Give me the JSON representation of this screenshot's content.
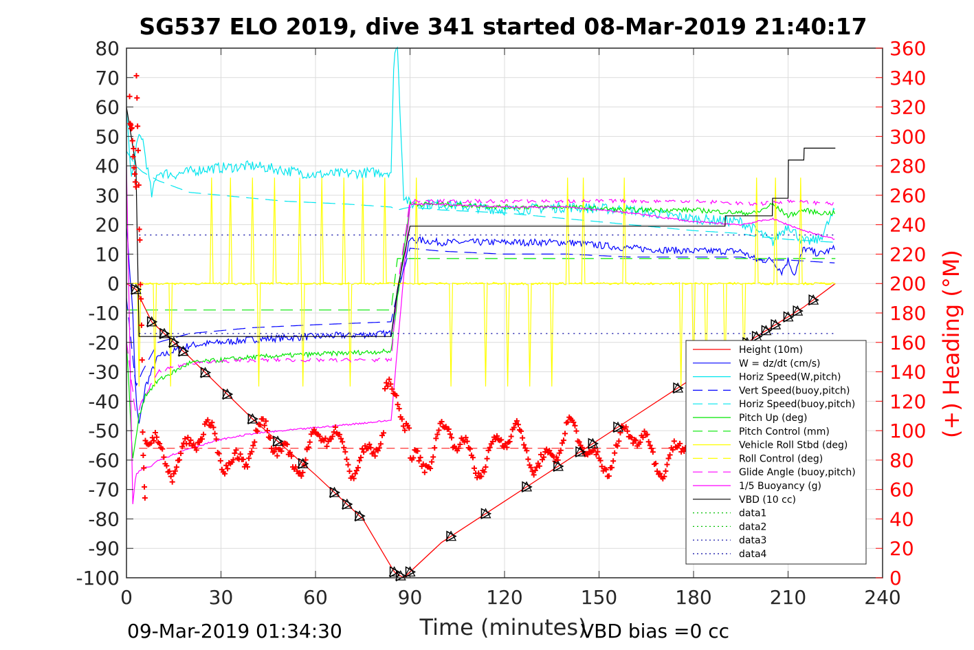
{
  "chart_data": {
    "type": "line",
    "title": "SG537 ELO 2019, dive 341 started 08-Mar-2019 21:40:17",
    "xlabel": "Time (minutes)",
    "ylabel_right": "(+) Heading (°M)",
    "xlim": [
      0,
      240
    ],
    "ylim_left": [
      -100,
      80
    ],
    "ylim_right": [
      0,
      360
    ],
    "x_ticks": [
      "0",
      "30",
      "60",
      "90",
      "120",
      "150",
      "180",
      "210",
      "240"
    ],
    "y_ticks_left": [
      "80",
      "70",
      "60",
      "50",
      "40",
      "30",
      "20",
      "10",
      "0",
      "-10",
      "-20",
      "-30",
      "-40",
      "-50",
      "-60",
      "-70",
      "-80",
      "-90",
      "-100"
    ],
    "y_ticks_right": [
      "360",
      "340",
      "320",
      "300",
      "280",
      "260",
      "240",
      "220",
      "200",
      "180",
      "160",
      "140",
      "120",
      "100",
      "80",
      "60",
      "40",
      "20",
      "0"
    ],
    "grid": true,
    "legend_position": "bottom-right",
    "footer_left": "09-Mar-2019 01:34:30",
    "footer_right": "VBD bias =0 cc",
    "heading_mean": 88,
    "series": [
      {
        "name": "Height (10m)",
        "color": "#ff0000",
        "style": "solid",
        "x": [
          0,
          3,
          8,
          20,
          40,
          60,
          75,
          85,
          88,
          100,
          120,
          140,
          160,
          180,
          200,
          215,
          225
        ],
        "y": [
          0,
          -2,
          -13,
          -25,
          -46,
          -65,
          -80,
          -98,
          -100,
          -88,
          -74,
          -60,
          -46,
          -32,
          -18,
          -8,
          0
        ]
      },
      {
        "name": "W = dz/dt (cm/s)",
        "color": "#0000ff",
        "style": "solid",
        "x": [
          0,
          2,
          3,
          4,
          6,
          10,
          20,
          40,
          60,
          84,
          86,
          90,
          100,
          120,
          140,
          160,
          180,
          195,
          200,
          205,
          208,
          210,
          212,
          215,
          220,
          225
        ],
        "y": [
          20,
          -10,
          -40,
          -48,
          -35,
          -25,
          -21,
          -19,
          -18,
          -17,
          -3,
          15,
          14,
          14,
          14,
          12,
          11,
          11,
          8,
          8,
          4,
          8,
          3,
          12,
          10,
          12
        ]
      },
      {
        "name": "Horiz Speed(W,pitch)",
        "color": "#00e5ee",
        "style": "solid",
        "x": [
          0,
          1.5,
          3,
          4,
          5,
          8,
          10,
          15,
          25,
          40,
          60,
          84,
          85,
          86,
          88,
          90,
          100,
          120,
          140,
          160,
          180,
          195,
          200,
          205,
          210,
          215,
          220,
          225
        ],
        "y": [
          60,
          35,
          45,
          50,
          50,
          30,
          38,
          37,
          39,
          40,
          37,
          38,
          80,
          80,
          30,
          27,
          27,
          25,
          26,
          25,
          22,
          21,
          18,
          14,
          20,
          14,
          15,
          25
        ]
      },
      {
        "name": "Vert Speed(buoy,pitch)",
        "color": "#0000ff",
        "style": "dashed",
        "x": [
          0,
          3,
          5,
          10,
          20,
          40,
          60,
          84,
          86,
          90,
          100,
          120,
          140,
          160,
          180,
          195,
          200,
          210,
          225
        ],
        "y": [
          -5,
          -35,
          -30,
          -20,
          -17,
          -15,
          -14,
          -13,
          -3,
          12,
          11,
          10,
          10,
          9,
          9,
          9,
          8,
          8,
          7
        ]
      },
      {
        "name": "Horiz Speed(buoy,pitch)",
        "color": "#00e5ee",
        "style": "dashed",
        "x": [
          0,
          3,
          5,
          10,
          20,
          30,
          50,
          70,
          84,
          86,
          90,
          100,
          120,
          140,
          160,
          180,
          195,
          200,
          210,
          225
        ],
        "y": [
          45,
          40,
          38,
          35,
          31,
          30,
          28,
          27,
          26,
          25,
          26,
          25,
          24,
          22,
          20,
          18,
          17,
          16,
          15,
          14
        ]
      },
      {
        "name": "Pitch Up (deg)",
        "color": "#00e600",
        "style": "solid",
        "x": [
          0,
          2,
          4,
          6,
          10,
          20,
          40,
          60,
          84,
          86,
          90,
          100,
          120,
          140,
          160,
          180,
          195,
          200,
          205,
          210,
          215,
          220,
          225
        ],
        "y": [
          -20,
          -60,
          -45,
          -38,
          -33,
          -27,
          -25,
          -24,
          -23,
          -5,
          27,
          27,
          26,
          26,
          25,
          25,
          24,
          24,
          27,
          23,
          25,
          24,
          24
        ]
      },
      {
        "name": "Pitch Control (mm)",
        "color": "#00e600",
        "style": "dashed",
        "x": [
          0,
          5,
          84,
          86,
          225
        ],
        "y": [
          -9,
          -9,
          -9,
          8.5,
          8.5
        ]
      },
      {
        "name": "Vehicle Roll Stbd (deg)",
        "color": "#ffff00",
        "style": "solid",
        "x": [
          0,
          10,
          20,
          40,
          60,
          80,
          100,
          120,
          140,
          160,
          180,
          200,
          225
        ],
        "y": [
          0,
          0,
          0,
          0,
          0,
          0,
          0,
          0,
          0,
          0,
          0,
          0,
          0
        ]
      },
      {
        "name": "Roll Control (deg)",
        "color": "#ffff00",
        "style": "dashed",
        "x": [
          0,
          225
        ],
        "y": [
          0,
          0
        ]
      },
      {
        "name": "Glide Angle (buoy,pitch)",
        "color": "#ff00ff",
        "style": "dashed",
        "x": [
          0,
          3,
          5,
          10,
          20,
          40,
          60,
          84,
          86,
          90,
          120,
          150,
          180,
          200,
          210,
          225
        ],
        "y": [
          -20,
          -45,
          -40,
          -30,
          -27,
          -26,
          -26,
          -26,
          -2,
          28,
          28,
          28,
          28,
          27,
          28,
          27
        ]
      },
      {
        "name": "1/5 Buoyancy (g)",
        "color": "#ff00ff",
        "style": "solid",
        "x": [
          0,
          2,
          3,
          5,
          8,
          10,
          15,
          20,
          30,
          40,
          60,
          84,
          90,
          100,
          120,
          140,
          160,
          180,
          195,
          205,
          215,
          225
        ],
        "y": [
          40,
          -75,
          -65,
          -63,
          -62,
          -60,
          -58,
          -56,
          -53,
          -51,
          -49,
          -46.5,
          27,
          27,
          26,
          26,
          24,
          21,
          20,
          22,
          18,
          15
        ]
      },
      {
        "name": "VBD (10 cc)",
        "color": "#000000",
        "style": "solid",
        "x": [
          0,
          3,
          4,
          84,
          86,
          90,
          190,
          190.1,
          205,
          205.1,
          210,
          210.1,
          215,
          215.1,
          225
        ],
        "y": [
          60,
          40,
          -18,
          -18,
          -2,
          19.5,
          19.5,
          23,
          23,
          29,
          29,
          42,
          42,
          46,
          46
        ]
      },
      {
        "name": "data1",
        "color": "#00c000",
        "style": "dotted",
        "x": [],
        "y": []
      },
      {
        "name": "data2",
        "color": "#00c000",
        "style": "dotted",
        "x": [],
        "y": []
      },
      {
        "name": "data3",
        "color": "#0000a0",
        "style": "dotted",
        "x": [
          4,
          225
        ],
        "y": [
          -17,
          -17
        ]
      },
      {
        "name": "data4",
        "color": "#0000a0",
        "style": "dotted",
        "x": [
          4,
          225
        ],
        "y": [
          16.5,
          16.5
        ]
      }
    ]
  }
}
